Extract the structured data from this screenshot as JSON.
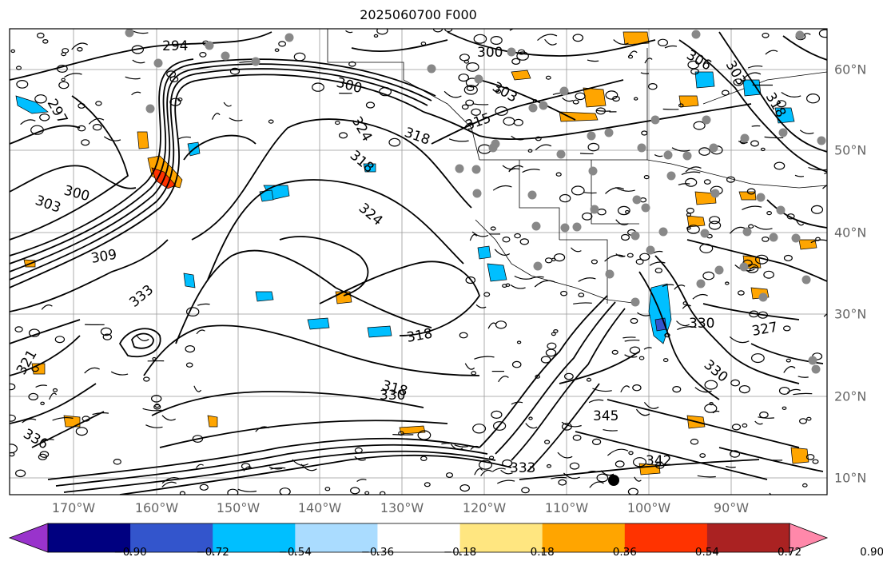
{
  "title": "2025060700 F000",
  "lon_labels": [
    "170°W",
    "160°W",
    "150°W",
    "140°W",
    "130°W",
    "120°W",
    "110°W",
    "100°W",
    "90°W"
  ],
  "lat_labels": [
    "60°N",
    "50°N",
    "40°N",
    "30°N",
    "20°N",
    "10°N"
  ],
  "contour_labels": [
    "294",
    "300",
    "300",
    "306",
    "303",
    "303",
    "297",
    "303",
    "300",
    "309",
    "315",
    "318",
    "324",
    "318",
    "324",
    "318",
    "318",
    "330",
    "333",
    "333",
    "336",
    "345",
    "342",
    "330",
    "330",
    "327",
    "321",
    "318"
  ],
  "colorbar": {
    "ticks": [
      "−0.90",
      "−0.72",
      "−0.54",
      "−0.36",
      "−0.18",
      "0.18",
      "0.36",
      "0.54",
      "0.72",
      "0.90"
    ],
    "colors": [
      "#9933cc",
      "#000080",
      "#3355cc",
      "#00bfff",
      "#aadcff",
      "#ffffff",
      "#ffe680",
      "#ffa500",
      "#ff3300",
      "#aa2222",
      "#ff88aa"
    ]
  },
  "colors": {
    "contour": "#000000",
    "grid": "#999999",
    "stations": "#888888",
    "negative_light": "#aadcff",
    "negative": "#00bfff",
    "positive_light": "#ffe680",
    "positive": "#ffa500"
  }
}
